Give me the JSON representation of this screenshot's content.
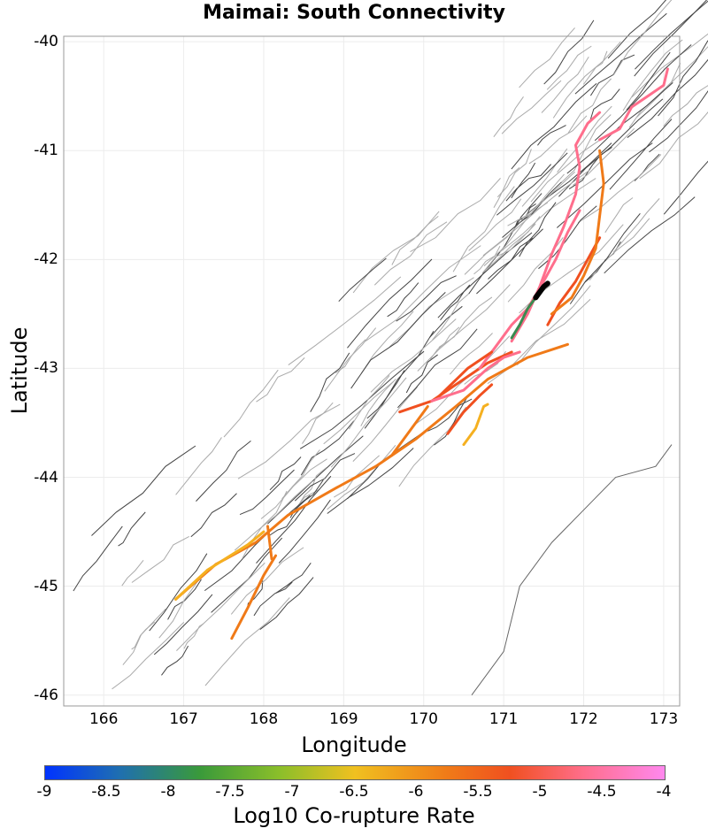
{
  "chart_data": {
    "type": "map",
    "title": "Maimai: South Connectivity",
    "xlabel": "Longitude",
    "ylabel": "Latitude",
    "xlim": [
      165.5,
      173.2
    ],
    "ylim": [
      -46.1,
      -39.95
    ],
    "x_ticks": [
      "166",
      "167",
      "168",
      "169",
      "170",
      "171",
      "172",
      "173"
    ],
    "y_ticks": [
      "-40",
      "-41",
      "-42",
      "-43",
      "-44",
      "-45",
      "-46"
    ],
    "colorbar": {
      "label": "Log10 Co-rupture Rate",
      "range": [
        -9,
        -4
      ],
      "ticks": [
        "-9",
        "-8.5",
        "-8",
        "-7.5",
        "-7",
        "-6.5",
        "-6",
        "-5.5",
        "-5",
        "-4.5",
        "-4"
      ]
    },
    "source_fault": {
      "name": "Maimai",
      "color": "#000000",
      "points": [
        [
          171.4,
          -42.35
        ],
        [
          171.45,
          -42.3
        ],
        [
          171.5,
          -42.25
        ],
        [
          171.55,
          -42.22
        ]
      ]
    },
    "colored_faults": [
      {
        "color": "#f07a18",
        "points": [
          [
            166.9,
            -45.12
          ],
          [
            167.4,
            -44.8
          ],
          [
            167.9,
            -44.6
          ],
          [
            168.3,
            -44.35
          ],
          [
            168.9,
            -44.1
          ],
          [
            169.4,
            -43.9
          ],
          [
            169.9,
            -43.65
          ],
          [
            170.4,
            -43.35
          ],
          [
            170.8,
            -43.1
          ],
          [
            171.3,
            -42.9
          ],
          [
            171.8,
            -42.78
          ]
        ]
      },
      {
        "color": "#f5b020",
        "points": [
          [
            166.9,
            -45.12
          ],
          [
            167.3,
            -44.85
          ],
          [
            167.8,
            -44.62
          ],
          [
            168.0,
            -44.5
          ]
        ]
      },
      {
        "color": "#f07a18",
        "points": [
          [
            167.6,
            -45.48
          ],
          [
            167.8,
            -45.2
          ],
          [
            168.0,
            -44.9
          ],
          [
            168.15,
            -44.72
          ]
        ]
      },
      {
        "color": "#f07a18",
        "points": [
          [
            168.05,
            -44.45
          ],
          [
            168.1,
            -44.75
          ]
        ]
      },
      {
        "color": "#f05020",
        "points": [
          [
            169.7,
            -43.4
          ],
          [
            170.1,
            -43.3
          ],
          [
            170.5,
            -43.1
          ],
          [
            170.8,
            -42.95
          ],
          [
            171.1,
            -42.85
          ]
        ]
      },
      {
        "color": "#ff6e8c",
        "points": [
          [
            170.1,
            -43.3
          ],
          [
            170.5,
            -43.2
          ],
          [
            170.8,
            -43.0
          ],
          [
            171.0,
            -42.9
          ],
          [
            171.2,
            -42.85
          ]
        ]
      },
      {
        "color": "#ff6e8c",
        "points": [
          [
            170.7,
            -43.0
          ],
          [
            170.9,
            -42.8
          ],
          [
            171.1,
            -42.6
          ],
          [
            171.3,
            -42.45
          ],
          [
            171.5,
            -42.2
          ],
          [
            171.65,
            -42.0
          ],
          [
            171.8,
            -41.75
          ],
          [
            171.95,
            -41.55
          ]
        ]
      },
      {
        "color": "#ff6e8c",
        "points": [
          [
            171.1,
            -42.75
          ],
          [
            171.3,
            -42.5
          ],
          [
            171.45,
            -42.25
          ],
          [
            171.6,
            -41.95
          ],
          [
            171.75,
            -41.7
          ],
          [
            171.9,
            -41.4
          ],
          [
            171.95,
            -41.15
          ],
          [
            171.9,
            -40.95
          ],
          [
            172.05,
            -40.75
          ],
          [
            172.2,
            -40.65
          ]
        ]
      },
      {
        "color": "#ff6e8c",
        "points": [
          [
            172.2,
            -40.9
          ],
          [
            172.45,
            -40.8
          ],
          [
            172.6,
            -40.6
          ],
          [
            172.8,
            -40.5
          ],
          [
            173.0,
            -40.4
          ],
          [
            173.05,
            -40.25
          ]
        ]
      },
      {
        "color": "#3a8a50",
        "points": [
          [
            171.1,
            -42.72
          ],
          [
            171.2,
            -42.6
          ],
          [
            171.3,
            -42.45
          ],
          [
            171.4,
            -42.35
          ]
        ]
      },
      {
        "color": "#f05020",
        "points": [
          [
            171.55,
            -42.6
          ],
          [
            171.7,
            -42.4
          ],
          [
            171.9,
            -42.2
          ],
          [
            172.05,
            -42.0
          ],
          [
            172.2,
            -41.8
          ]
        ]
      },
      {
        "color": "#f07a18",
        "points": [
          [
            172.2,
            -41.0
          ],
          [
            172.25,
            -41.3
          ],
          [
            172.2,
            -41.6
          ],
          [
            172.15,
            -41.9
          ],
          [
            172.0,
            -42.15
          ],
          [
            171.85,
            -42.35
          ],
          [
            171.6,
            -42.5
          ]
        ]
      },
      {
        "color": "#f05020",
        "points": [
          [
            170.3,
            -43.6
          ],
          [
            170.5,
            -43.4
          ],
          [
            170.7,
            -43.25
          ],
          [
            170.85,
            -43.15
          ]
        ]
      },
      {
        "color": "#f5b020",
        "points": [
          [
            170.5,
            -43.7
          ],
          [
            170.65,
            -43.55
          ],
          [
            170.75,
            -43.35
          ],
          [
            170.8,
            -43.33
          ]
        ]
      },
      {
        "color": "#f07a18",
        "points": [
          [
            169.6,
            -43.8
          ],
          [
            169.85,
            -43.55
          ],
          [
            170.05,
            -43.35
          ]
        ]
      },
      {
        "color": "#f05020",
        "points": [
          [
            170.2,
            -43.25
          ],
          [
            170.55,
            -43.0
          ],
          [
            170.85,
            -42.85
          ]
        ]
      }
    ]
  }
}
